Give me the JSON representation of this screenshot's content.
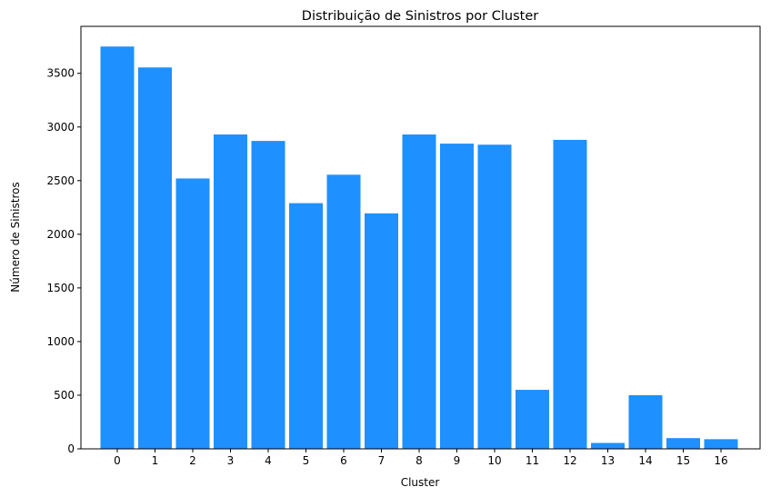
{
  "chart_data": {
    "type": "bar",
    "title": "Distribuição de Sinistros por Cluster",
    "xlabel": "Cluster",
    "ylabel": "Número de Sinistros",
    "categories": [
      "0",
      "1",
      "2",
      "3",
      "4",
      "5",
      "6",
      "7",
      "8",
      "9",
      "10",
      "11",
      "12",
      "13",
      "14",
      "15",
      "16"
    ],
    "values": [
      3750,
      3555,
      2520,
      2930,
      2870,
      2290,
      2555,
      2195,
      2930,
      2845,
      2835,
      550,
      2880,
      55,
      500,
      100,
      90
    ],
    "yticks": [
      0,
      500,
      1000,
      1500,
      2000,
      2500,
      3000,
      3500
    ],
    "ylim": [
      0,
      3938
    ],
    "bar_color": "#1e90ff",
    "grid": false,
    "legend": false
  }
}
